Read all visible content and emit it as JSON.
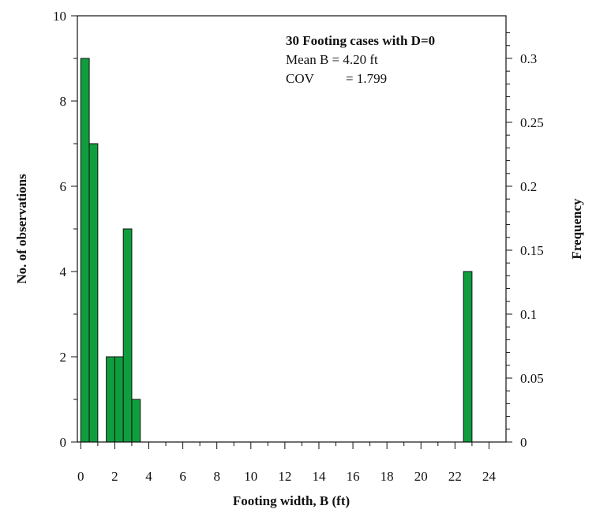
{
  "chart_data": {
    "type": "bar",
    "title": "30 Footing cases with D=0",
    "annotations": [
      "Mean B = 4.20 ft",
      "COV",
      "= 1.799"
    ],
    "xlabel": "Footing width, B (ft)",
    "ylabel": "No. of observations",
    "y2label": "Frequency",
    "xlim": [
      -0.2,
      25
    ],
    "ylim": [
      0,
      10
    ],
    "y2lim": [
      0,
      0.3333
    ],
    "bin_width": 0.5,
    "bins": [
      {
        "x0": 0.0,
        "x1": 0.5,
        "value": 9
      },
      {
        "x0": 0.5,
        "x1": 1.0,
        "value": 7
      },
      {
        "x0": 1.5,
        "x1": 2.0,
        "value": 2
      },
      {
        "x0": 2.0,
        "x1": 2.5,
        "value": 2
      },
      {
        "x0": 2.5,
        "x1": 3.0,
        "value": 5
      },
      {
        "x0": 3.0,
        "x1": 3.5,
        "value": 1
      },
      {
        "x0": 22.5,
        "x1": 23.0,
        "value": 4
      }
    ],
    "x_ticks": [
      "0",
      "2",
      "4",
      "6",
      "8",
      "10",
      "12",
      "14",
      "16",
      "18",
      "20",
      "22",
      "24"
    ],
    "x_tick_values": [
      0,
      2,
      4,
      6,
      8,
      10,
      12,
      14,
      16,
      18,
      20,
      22,
      24
    ],
    "y_ticks": [
      "0",
      "2",
      "4",
      "6",
      "8",
      "10"
    ],
    "y_tick_values": [
      0,
      2,
      4,
      6,
      8,
      10
    ],
    "y2_ticks": [
      "0",
      "0.05",
      "0.1",
      "0.15",
      "0.2",
      "0.25",
      "0.3"
    ],
    "y2_tick_values": [
      0,
      0.05,
      0.1,
      0.15,
      0.2,
      0.25,
      0.3
    ],
    "bar_color": "#0f9e3e",
    "grid": false
  }
}
